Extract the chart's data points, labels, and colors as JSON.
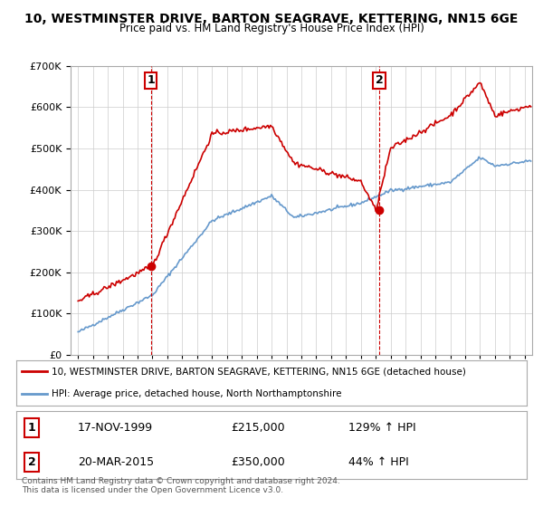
{
  "title": "10, WESTMINSTER DRIVE, BARTON SEAGRAVE, KETTERING, NN15 6GE",
  "subtitle": "Price paid vs. HM Land Registry's House Price Index (HPI)",
  "legend_line1": "10, WESTMINSTER DRIVE, BARTON SEAGRAVE, KETTERING, NN15 6GE (detached house)",
  "legend_line2": "HPI: Average price, detached house, North Northamptonshire",
  "sale1_date": "17-NOV-1999",
  "sale1_price": 215000,
  "sale1_label": "129% ↑ HPI",
  "sale1_x": 1999.88,
  "sale2_date": "20-MAR-2015",
  "sale2_price": 350000,
  "sale2_label": "44% ↑ HPI",
  "sale2_x": 2015.22,
  "red_line_color": "#cc0000",
  "blue_line_color": "#6699cc",
  "dashed_color": "#cc0000",
  "marker_color": "#cc0000",
  "ylim": [
    0,
    700000
  ],
  "xlim_left": 1994.5,
  "xlim_right": 2025.5,
  "footer": "Contains HM Land Registry data © Crown copyright and database right 2024.\nThis data is licensed under the Open Government Licence v3.0.",
  "bg_color": "#ffffff",
  "grid_color": "#cccccc"
}
